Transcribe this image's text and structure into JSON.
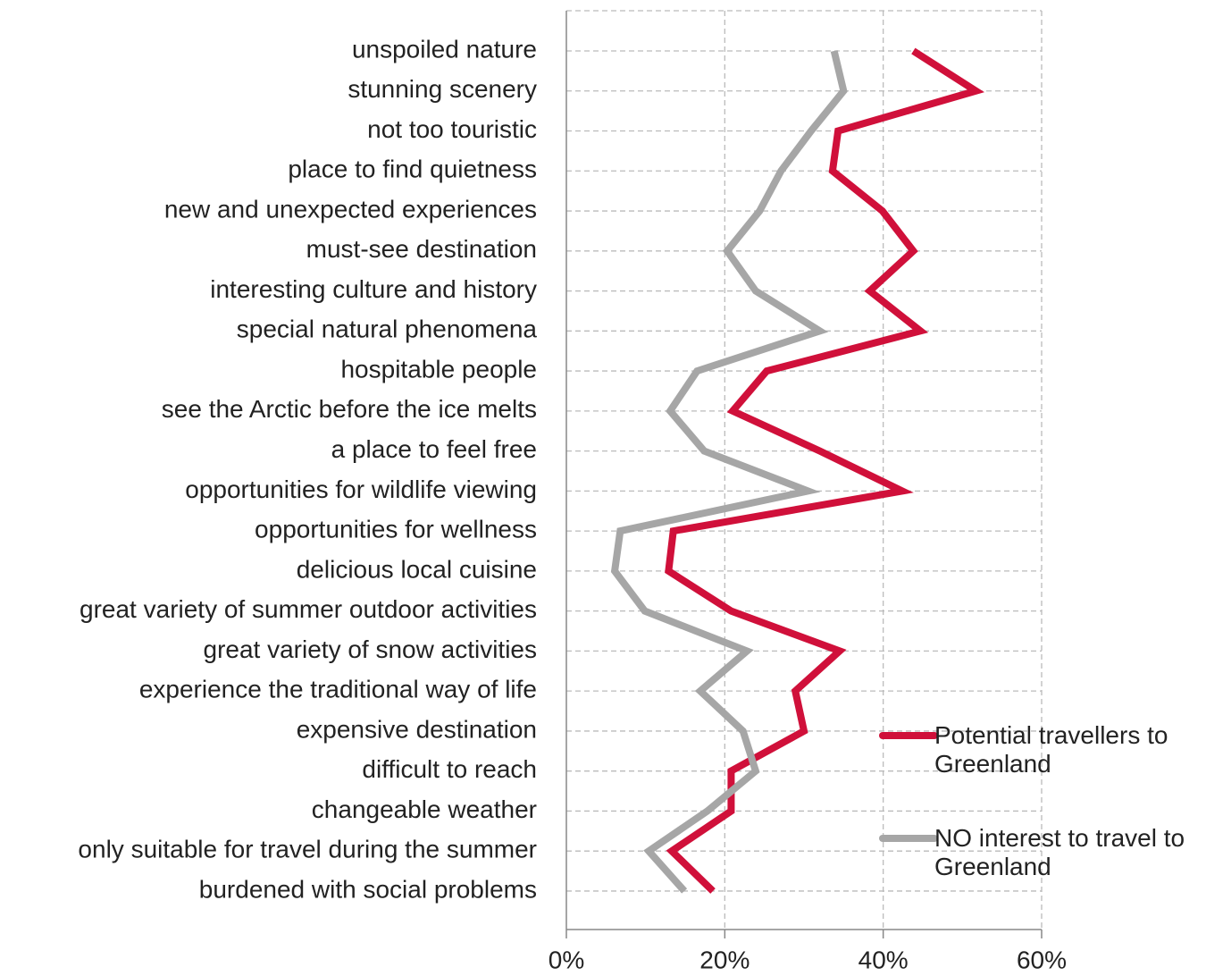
{
  "chart_data": {
    "type": "line",
    "orientation": "horizontal",
    "categories": [
      "unspoiled nature",
      "stunning scenery",
      "not too touristic",
      "place to find quietness",
      "new and unexpected experiences",
      "must-see destination",
      "interesting culture and history",
      "special natural phenomena",
      "hospitable people",
      "see the Arctic before the ice melts",
      "a place to feel free",
      "opportunities for wildlife viewing",
      "opportunities for wellness",
      "delicious local cuisine",
      "great variety of summer outdoor activities",
      "great variety of snow activities",
      "experience the traditional way of life",
      "expensive destination",
      "difficult to reach",
      "changeable weather",
      "only suitable for travel during the summer",
      "burdened with social problems"
    ],
    "series": [
      {
        "name": "Potential travellers to Greenland",
        "color": "#d0103a",
        "values": [
          43.8,
          51.7,
          34.3,
          33.6,
          39.9,
          43.8,
          38.3,
          44.7,
          25.3,
          21.0,
          32.0,
          42.4,
          13.5,
          12.9,
          20.8,
          34.5,
          28.9,
          30.0,
          20.8,
          20.8,
          13.3,
          18.5
        ]
      },
      {
        "name": "NO interest to travel to Greenland",
        "color": "#a6a6a6",
        "values": [
          33.8,
          35.0,
          30.9,
          27.1,
          24.4,
          20.3,
          23.9,
          32.0,
          16.5,
          13.1,
          17.4,
          30.5,
          6.8,
          6.1,
          9.9,
          22.8,
          16.9,
          22.3,
          23.9,
          17.8,
          10.4,
          14.9
        ]
      }
    ],
    "xlim": [
      0,
      60
    ],
    "xticks": [
      {
        "value": 0,
        "label": "0%"
      },
      {
        "value": 20,
        "label": "20%"
      },
      {
        "value": 40,
        "label": "40%"
      },
      {
        "value": 60,
        "label": "60%"
      }
    ],
    "grid": true,
    "legend": "lower right"
  }
}
